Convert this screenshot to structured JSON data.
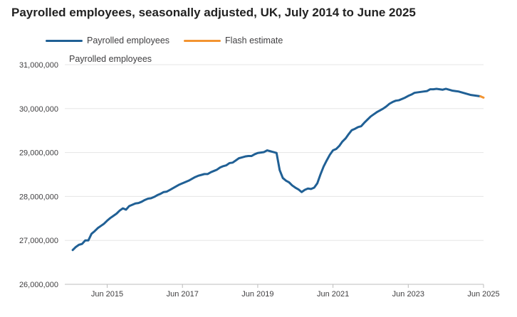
{
  "title": "Payrolled employees, seasonally adjusted, UK, July 2014 to June 2025",
  "colors": {
    "payrolled": "#206095",
    "flash": "#F39431",
    "grid": "#e5e5e5",
    "axis": "#bcbcbc",
    "text": "#414042"
  },
  "chart_data": {
    "type": "line",
    "title": "Payrolled employees, seasonally adjusted, UK, July 2014 to June 2025",
    "xlabel": "",
    "ylabel": "Payrolled employees",
    "ylim": [
      26000000,
      31000000
    ],
    "xlim": [
      "2014-07",
      "2025-06"
    ],
    "grid": true,
    "legend": "top-left",
    "y_ticks": [
      {
        "value": 26000000,
        "label": "26,000,000"
      },
      {
        "value": 27000000,
        "label": "27,000,000"
      },
      {
        "value": 28000000,
        "label": "28,000,000"
      },
      {
        "value": 29000000,
        "label": "29,000,000"
      },
      {
        "value": 30000000,
        "label": "30,000,000"
      },
      {
        "value": 31000000,
        "label": "31,000,000"
      }
    ],
    "x_ticks": [
      {
        "value": "2015-06",
        "label": "Jun 2015"
      },
      {
        "value": "2017-06",
        "label": "Jun 2017"
      },
      {
        "value": "2019-06",
        "label": "Jun 2019"
      },
      {
        "value": "2021-06",
        "label": "Jun 2021"
      },
      {
        "value": "2023-06",
        "label": "Jun 2023"
      },
      {
        "value": "2025-06",
        "label": "Jun 2025"
      }
    ],
    "series": [
      {
        "name": "Payrolled employees",
        "points": [
          [
            "2014-07",
            26780000
          ],
          [
            "2014-08",
            26850000
          ],
          [
            "2014-09",
            26900000
          ],
          [
            "2014-10",
            26920000
          ],
          [
            "2014-11",
            27000000
          ],
          [
            "2014-12",
            27000000
          ],
          [
            "2015-01",
            27150000
          ],
          [
            "2015-02",
            27210000
          ],
          [
            "2015-03",
            27280000
          ],
          [
            "2015-04",
            27330000
          ],
          [
            "2015-05",
            27380000
          ],
          [
            "2015-06",
            27450000
          ],
          [
            "2015-07",
            27510000
          ],
          [
            "2015-08",
            27560000
          ],
          [
            "2015-09",
            27610000
          ],
          [
            "2015-10",
            27680000
          ],
          [
            "2015-11",
            27730000
          ],
          [
            "2015-12",
            27700000
          ],
          [
            "2016-01",
            27780000
          ],
          [
            "2016-02",
            27810000
          ],
          [
            "2016-03",
            27840000
          ],
          [
            "2016-04",
            27850000
          ],
          [
            "2016-05",
            27880000
          ],
          [
            "2016-06",
            27920000
          ],
          [
            "2016-07",
            27950000
          ],
          [
            "2016-08",
            27960000
          ],
          [
            "2016-09",
            27990000
          ],
          [
            "2016-10",
            28030000
          ],
          [
            "2016-11",
            28060000
          ],
          [
            "2016-12",
            28100000
          ],
          [
            "2017-01",
            28110000
          ],
          [
            "2017-02",
            28150000
          ],
          [
            "2017-03",
            28190000
          ],
          [
            "2017-04",
            28230000
          ],
          [
            "2017-05",
            28270000
          ],
          [
            "2017-06",
            28300000
          ],
          [
            "2017-07",
            28330000
          ],
          [
            "2017-08",
            28360000
          ],
          [
            "2017-09",
            28400000
          ],
          [
            "2017-10",
            28440000
          ],
          [
            "2017-11",
            28470000
          ],
          [
            "2017-12",
            28490000
          ],
          [
            "2018-01",
            28510000
          ],
          [
            "2018-02",
            28510000
          ],
          [
            "2018-03",
            28550000
          ],
          [
            "2018-04",
            28580000
          ],
          [
            "2018-05",
            28610000
          ],
          [
            "2018-06",
            28660000
          ],
          [
            "2018-07",
            28690000
          ],
          [
            "2018-08",
            28710000
          ],
          [
            "2018-09",
            28760000
          ],
          [
            "2018-10",
            28770000
          ],
          [
            "2018-11",
            28820000
          ],
          [
            "2018-12",
            28870000
          ],
          [
            "2019-01",
            28890000
          ],
          [
            "2019-02",
            28910000
          ],
          [
            "2019-03",
            28920000
          ],
          [
            "2019-04",
            28920000
          ],
          [
            "2019-05",
            28960000
          ],
          [
            "2019-06",
            28990000
          ],
          [
            "2019-07",
            29000000
          ],
          [
            "2019-08",
            29010000
          ],
          [
            "2019-09",
            29050000
          ],
          [
            "2019-10",
            29030000
          ],
          [
            "2019-11",
            29010000
          ],
          [
            "2019-12",
            28990000
          ],
          [
            "2020-01",
            28600000
          ],
          [
            "2020-02",
            28420000
          ],
          [
            "2020-03",
            28360000
          ],
          [
            "2020-04",
            28320000
          ],
          [
            "2020-05",
            28250000
          ],
          [
            "2020-06",
            28200000
          ],
          [
            "2020-07",
            28160000
          ],
          [
            "2020-08",
            28100000
          ],
          [
            "2020-09",
            28150000
          ],
          [
            "2020-10",
            28180000
          ],
          [
            "2020-11",
            28170000
          ],
          [
            "2020-12",
            28200000
          ],
          [
            "2021-01",
            28300000
          ],
          [
            "2021-02",
            28500000
          ],
          [
            "2021-03",
            28680000
          ],
          [
            "2021-04",
            28820000
          ],
          [
            "2021-05",
            28950000
          ],
          [
            "2021-06",
            29050000
          ],
          [
            "2021-07",
            29080000
          ],
          [
            "2021-08",
            29150000
          ],
          [
            "2021-09",
            29250000
          ],
          [
            "2021-10",
            29320000
          ],
          [
            "2021-11",
            29420000
          ],
          [
            "2021-12",
            29510000
          ],
          [
            "2022-01",
            29540000
          ],
          [
            "2022-02",
            29580000
          ],
          [
            "2022-03",
            29600000
          ],
          [
            "2022-04",
            29680000
          ],
          [
            "2022-05",
            29750000
          ],
          [
            "2022-06",
            29820000
          ],
          [
            "2022-07",
            29870000
          ],
          [
            "2022-08",
            29920000
          ],
          [
            "2022-09",
            29960000
          ],
          [
            "2022-10",
            30000000
          ],
          [
            "2022-11",
            30050000
          ],
          [
            "2022-12",
            30110000
          ],
          [
            "2023-01",
            30150000
          ],
          [
            "2023-02",
            30180000
          ],
          [
            "2023-03",
            30190000
          ],
          [
            "2023-04",
            30220000
          ],
          [
            "2023-05",
            30250000
          ],
          [
            "2023-06",
            30290000
          ],
          [
            "2023-07",
            30320000
          ],
          [
            "2023-08",
            30360000
          ],
          [
            "2023-09",
            30370000
          ],
          [
            "2023-10",
            30380000
          ],
          [
            "2023-11",
            30390000
          ],
          [
            "2023-12",
            30400000
          ],
          [
            "2024-01",
            30440000
          ],
          [
            "2024-02",
            30440000
          ],
          [
            "2024-03",
            30450000
          ],
          [
            "2024-04",
            30440000
          ],
          [
            "2024-05",
            30430000
          ],
          [
            "2024-06",
            30450000
          ],
          [
            "2024-07",
            30430000
          ],
          [
            "2024-08",
            30410000
          ],
          [
            "2024-09",
            30400000
          ],
          [
            "2024-10",
            30390000
          ],
          [
            "2024-11",
            30370000
          ],
          [
            "2024-12",
            30350000
          ],
          [
            "2025-01",
            30330000
          ],
          [
            "2025-02",
            30310000
          ],
          [
            "2025-03",
            30300000
          ],
          [
            "2025-04",
            30290000
          ],
          [
            "2025-05",
            30280000
          ]
        ]
      },
      {
        "name": "Flash estimate",
        "points": [
          [
            "2025-05",
            30280000
          ],
          [
            "2025-06",
            30250000
          ]
        ]
      }
    ]
  }
}
